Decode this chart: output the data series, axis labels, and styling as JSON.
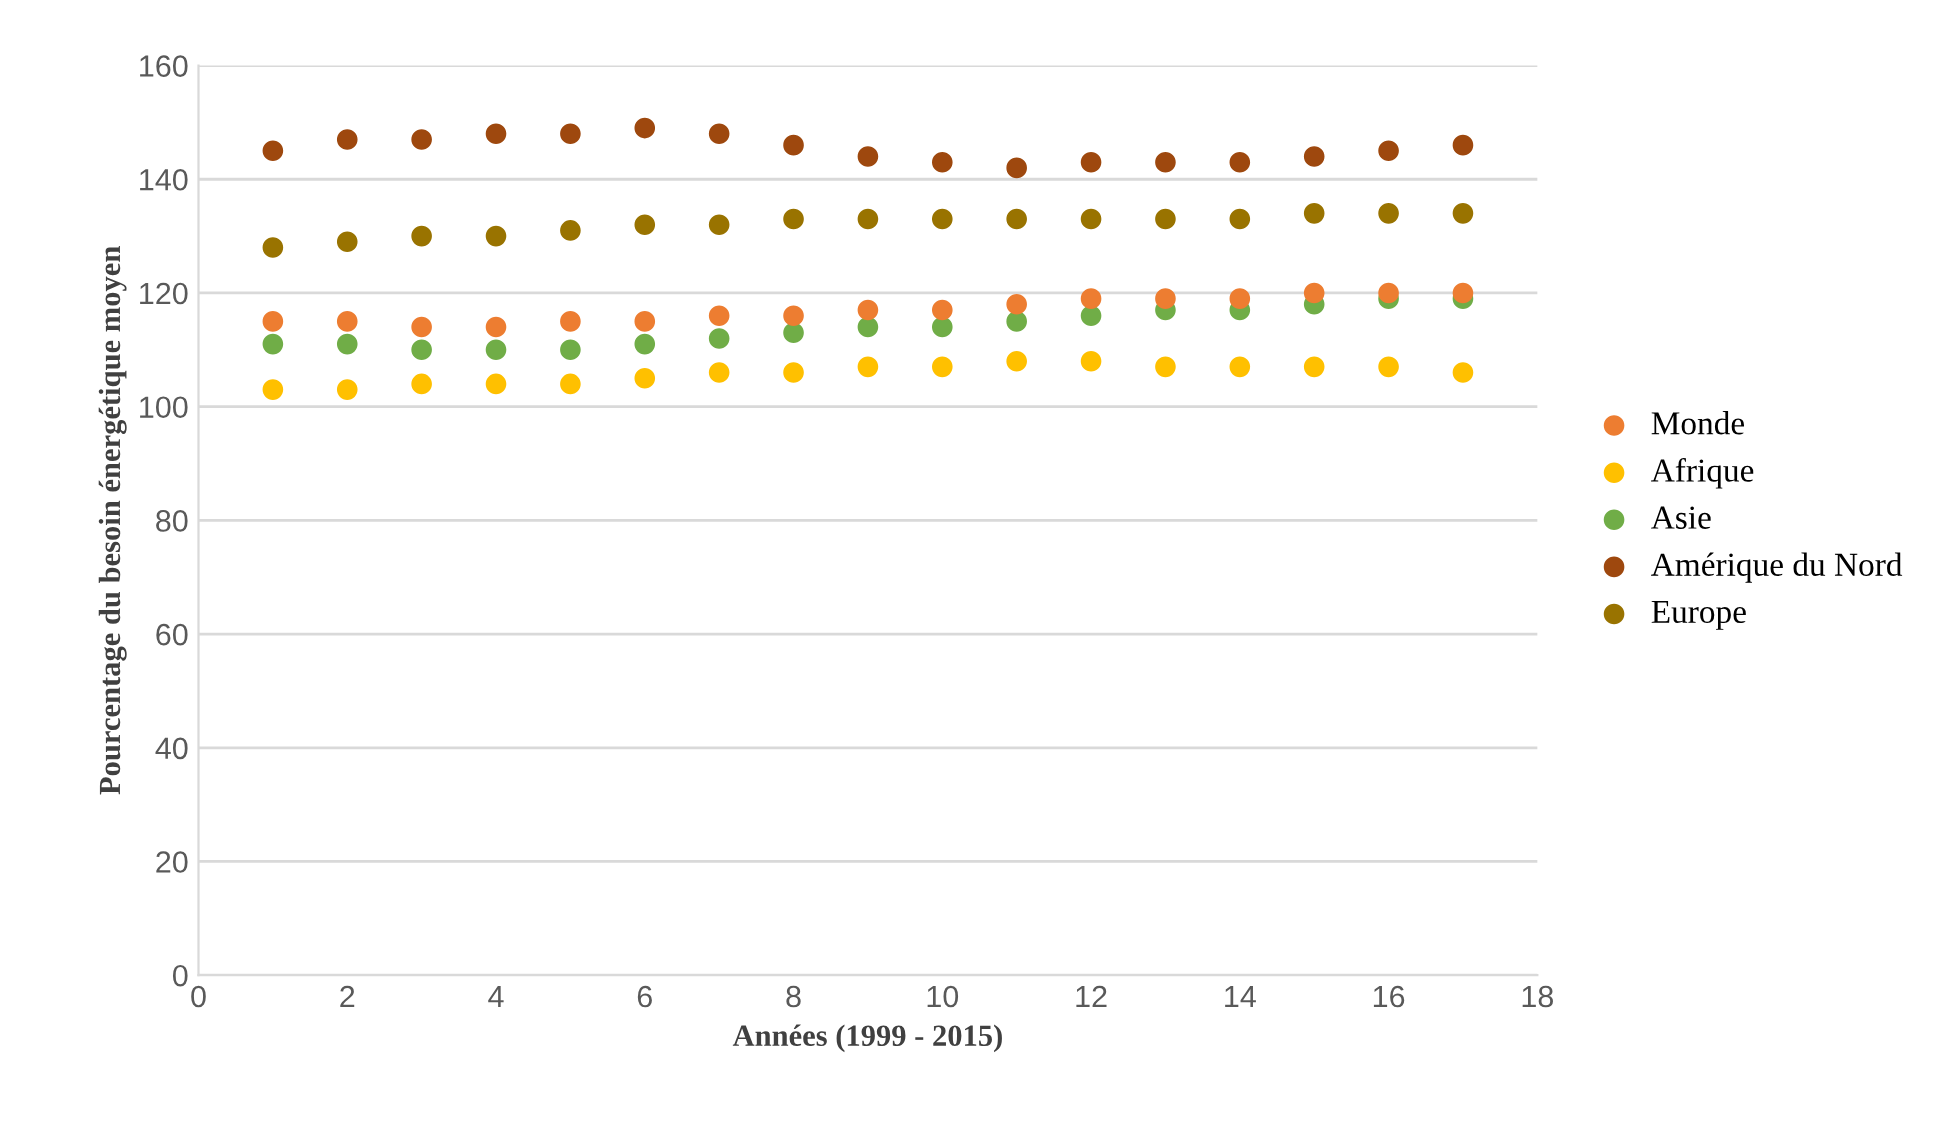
{
  "chart_data": {
    "type": "scatter",
    "xlabel": "Années (1999 - 2015)",
    "ylabel": "Pourcentage du besoin énergétique moyen",
    "x": [
      1,
      2,
      3,
      4,
      5,
      6,
      7,
      8,
      9,
      10,
      11,
      12,
      13,
      14,
      15,
      16,
      17
    ],
    "series": [
      {
        "name": "Monde",
        "color": "#ed7d31",
        "values": [
          115,
          115,
          114,
          114,
          115,
          115,
          116,
          116,
          117,
          117,
          118,
          119,
          119,
          119,
          120,
          120,
          120
        ]
      },
      {
        "name": "Afrique",
        "color": "#ffc000",
        "values": [
          103,
          103,
          104,
          104,
          104,
          105,
          106,
          106,
          107,
          107,
          108,
          108,
          107,
          107,
          107,
          107,
          106
        ]
      },
      {
        "name": "Asie",
        "color": "#70ad47",
        "values": [
          111,
          111,
          110,
          110,
          110,
          111,
          112,
          113,
          114,
          114,
          115,
          116,
          117,
          117,
          118,
          119,
          119
        ]
      },
      {
        "name": "Amérique du Nord",
        "color": "#9e480e",
        "values": [
          145,
          147,
          147,
          148,
          148,
          149,
          148,
          146,
          144,
          143,
          142,
          143,
          143,
          143,
          144,
          145,
          146
        ]
      },
      {
        "name": "Europe",
        "color": "#997300",
        "values": [
          128,
          129,
          130,
          130,
          131,
          132,
          132,
          133,
          133,
          133,
          133,
          133,
          133,
          133,
          134,
          134,
          134
        ]
      }
    ],
    "xlim": [
      0,
      18
    ],
    "xticks": [
      0,
      2,
      4,
      6,
      8,
      10,
      12,
      14,
      16,
      18
    ],
    "ylim": [
      0,
      160
    ],
    "yticks": [
      0,
      20,
      40,
      60,
      80,
      100,
      120,
      140,
      160
    ],
    "grid": "y",
    "legend": "right",
    "marker": "circle"
  }
}
